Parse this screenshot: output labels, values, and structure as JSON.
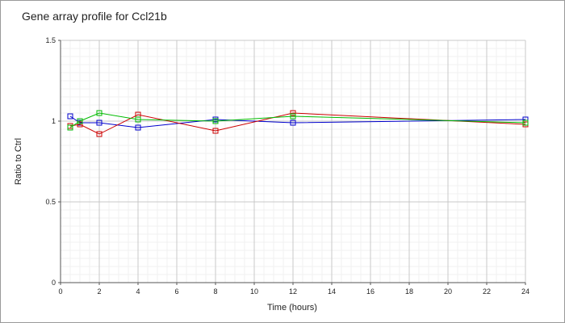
{
  "chart_data": {
    "type": "line",
    "title": "Gene array profile for Ccl21b",
    "xlabel": "Time (hours)",
    "ylabel": "Ratio to Ctrl",
    "xlim": [
      0,
      24
    ],
    "ylim": [
      0,
      1.5
    ],
    "xticks": [
      0,
      2,
      4,
      6,
      8,
      10,
      12,
      14,
      16,
      18,
      20,
      22,
      24
    ],
    "yticks": [
      0,
      0.5,
      1,
      1.5
    ],
    "ytick_labels": [
      "0",
      "0.5",
      "1",
      "1.5"
    ],
    "grid": true,
    "series": [
      {
        "color": "#0000cc",
        "x": [
          0.5,
          1,
          2,
          4,
          8,
          12,
          24
        ],
        "y": [
          1.03,
          0.99,
          0.99,
          0.96,
          1.01,
          0.99,
          1.01
        ]
      },
      {
        "color": "#cc0000",
        "x": [
          0.5,
          1,
          2,
          4,
          8,
          12,
          24
        ],
        "y": [
          0.97,
          0.98,
          0.92,
          1.04,
          0.94,
          1.05,
          0.98
        ]
      },
      {
        "color": "#00bb00",
        "x": [
          0.5,
          1,
          2,
          4,
          8,
          12,
          24
        ],
        "y": [
          0.96,
          1.0,
          1.05,
          1.01,
          1.0,
          1.03,
          0.99
        ]
      }
    ]
  }
}
